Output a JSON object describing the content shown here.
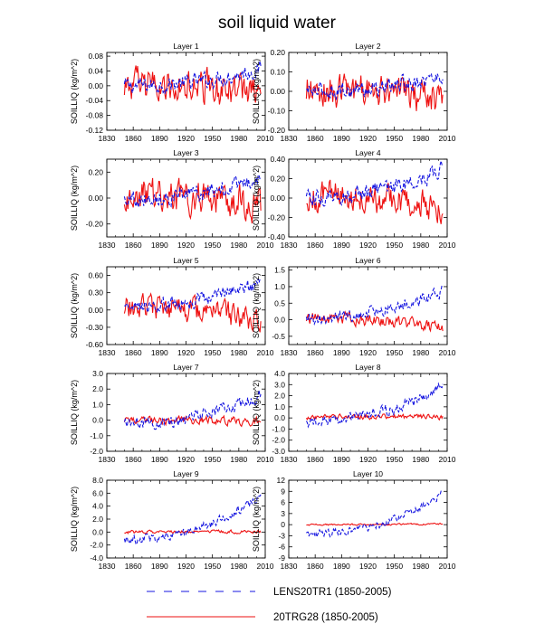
{
  "chart_data": {
    "title": "soil liquid water",
    "type": "line",
    "legend": {
      "position": "bottom-center",
      "entries": [
        {
          "label": "LENS20TR1 (1850-2005)",
          "color": "#1515e0",
          "style": "dashed"
        },
        {
          "label": "20TRG28 (1850-2005)",
          "color": "#ee1111",
          "style": "solid"
        }
      ]
    },
    "panels": [
      {
        "title": "Layer 1",
        "ylabel": "SOILLIQ  (kg/m^2)",
        "xlim": [
          1830,
          2010
        ],
        "xticks": [
          1830,
          1860,
          1890,
          1920,
          1950,
          1980,
          2010
        ],
        "ylim": [
          -0.12,
          0.09
        ],
        "yticks": [
          -0.12,
          -0.08,
          -0.04,
          0.0,
          0.04,
          0.08
        ],
        "ytick_labels": [
          "-0.12",
          "-0.08",
          "-0.04",
          "0.00",
          "0.04",
          "0.08"
        ],
        "red": {
          "amp": 0.038,
          "trend_start": 0.0,
          "trend_end": -0.015
        },
        "blue": {
          "amp": 0.018,
          "trend_start": 0.0,
          "trend_end": 0.045
        }
      },
      {
        "title": "Layer 2",
        "ylabel": "SOILLIQ  (kg/m^2)",
        "xlim": [
          1830,
          2010
        ],
        "xticks": [
          1830,
          1860,
          1890,
          1920,
          1950,
          1980,
          2010
        ],
        "ylim": [
          -0.2,
          0.2
        ],
        "yticks": [
          -0.2,
          -0.1,
          0.0,
          0.1,
          0.2
        ],
        "ytick_labels": [
          "-0.20",
          "-0.10",
          "0.00",
          "0.10",
          "0.20"
        ],
        "red": {
          "amp": 0.075,
          "trend_start": 0.01,
          "trend_end": -0.04
        },
        "blue": {
          "amp": 0.035,
          "trend_start": 0.0,
          "trend_end": 0.08
        }
      },
      {
        "title": "Layer 3",
        "ylabel": "SOILLIQ  (kg/m^2)",
        "xlim": [
          1830,
          2010
        ],
        "xticks": [
          1830,
          1860,
          1890,
          1920,
          1950,
          1980,
          2010
        ],
        "ylim": [
          -0.3,
          0.3
        ],
        "yticks": [
          -0.2,
          0.0,
          0.2
        ],
        "ytick_labels": [
          "-0.20",
          "0.00",
          "0.20"
        ],
        "red": {
          "amp": 0.11,
          "trend_start": 0.02,
          "trend_end": -0.06
        },
        "blue": {
          "amp": 0.05,
          "trend_start": 0.0,
          "trend_end": 0.15
        }
      },
      {
        "title": "Layer 4",
        "ylabel": "SOILLIQ  (kg/m^2)",
        "xlim": [
          1830,
          2010
        ],
        "xticks": [
          1830,
          1860,
          1890,
          1920,
          1950,
          1980,
          2010
        ],
        "ylim": [
          -0.4,
          0.4
        ],
        "yticks": [
          -0.4,
          -0.2,
          0.0,
          0.2,
          0.4
        ],
        "ytick_labels": [
          "-0.40",
          "-0.20",
          "0.00",
          "0.20",
          "0.40"
        ],
        "red": {
          "amp": 0.13,
          "trend_start": 0.02,
          "trend_end": -0.1
        },
        "blue": {
          "amp": 0.07,
          "trend_start": 0.0,
          "trend_end": 0.3
        }
      },
      {
        "title": "Layer 5",
        "ylabel": "SOILLIQ  (kg/m^2)",
        "xlim": [
          1830,
          2010
        ],
        "xticks": [
          1830,
          1860,
          1890,
          1920,
          1950,
          1980,
          2010
        ],
        "ylim": [
          -0.6,
          0.75
        ],
        "yticks": [
          -0.6,
          -0.3,
          0.0,
          0.3,
          0.6
        ],
        "ytick_labels": [
          "-0.60",
          "-0.30",
          "0.00",
          "0.30",
          "0.60"
        ],
        "red": {
          "amp": 0.18,
          "trend_start": 0.05,
          "trend_end": -0.2
        },
        "blue": {
          "amp": 0.1,
          "trend_start": 0.05,
          "trend_end": 0.5
        }
      },
      {
        "title": "Layer 6",
        "ylabel": "SOILLIQ  (kg/m^2)",
        "xlim": [
          1830,
          2010
        ],
        "xticks": [
          1830,
          1860,
          1890,
          1920,
          1950,
          1980,
          2010
        ],
        "ylim": [
          -0.75,
          1.6
        ],
        "yticks": [
          -0.5,
          0.0,
          0.5,
          1.0,
          1.5
        ],
        "ytick_labels": [
          "-0.5",
          "0.0",
          "0.5",
          "1.0",
          "1.5"
        ],
        "red": {
          "amp": 0.15,
          "trend_start": 0.05,
          "trend_end": -0.25
        },
        "blue": {
          "amp": 0.15,
          "trend_start": 0.05,
          "trend_end": 0.9
        }
      },
      {
        "title": "Layer 7",
        "ylabel": "SOILLIQ  (kg/m^2)",
        "xlim": [
          1830,
          2010
        ],
        "xticks": [
          1830,
          1860,
          1890,
          1920,
          1950,
          1980,
          2010
        ],
        "ylim": [
          -2.0,
          3.0
        ],
        "yticks": [
          -2.0,
          -1.0,
          0.0,
          1.0,
          2.0,
          3.0
        ],
        "ytick_labels": [
          "-2.0",
          "-1.0",
          "0.0",
          "1.0",
          "2.0",
          "3.0"
        ],
        "red": {
          "amp": 0.22,
          "trend_start": 0.0,
          "trend_end": -0.1
        },
        "blue": {
          "amp": 0.35,
          "trend_start": -0.2,
          "trend_end": 1.6
        }
      },
      {
        "title": "Layer 8",
        "ylabel": "SOILLIQ  (kg/m^2)",
        "xlim": [
          1830,
          2010
        ],
        "xticks": [
          1830,
          1860,
          1890,
          1920,
          1950,
          1980,
          2010
        ],
        "ylim": [
          -3.0,
          4.0
        ],
        "yticks": [
          -3.0,
          -2.0,
          -1.0,
          0.0,
          1.0,
          2.0,
          3.0,
          4.0
        ],
        "ytick_labels": [
          "-3.0",
          "-2.0",
          "-1.0",
          "0.0",
          "1.0",
          "2.0",
          "3.0",
          "4.0"
        ],
        "red": {
          "amp": 0.2,
          "trend_start": 0.1,
          "trend_end": 0.1
        },
        "blue": {
          "amp": 0.45,
          "trend_start": -0.4,
          "trend_end": 3.0
        }
      },
      {
        "title": "Layer 9",
        "ylabel": "SOILLIQ  (kg/m^2)",
        "xlim": [
          1830,
          2010
        ],
        "xticks": [
          1830,
          1860,
          1890,
          1920,
          1950,
          1980,
          2010
        ],
        "ylim": [
          -4.0,
          8.0
        ],
        "yticks": [
          -4.0,
          -2.0,
          0.0,
          2.0,
          4.0,
          6.0,
          8.0
        ],
        "ytick_labels": [
          "-4.0",
          "-2.0",
          "0.0",
          "2.0",
          "4.0",
          "6.0",
          "8.0"
        ],
        "red": {
          "amp": 0.22,
          "trend_start": 0.0,
          "trend_end": 0.1
        },
        "blue": {
          "amp": 0.6,
          "trend_start": -1.2,
          "trend_end": 5.5
        }
      },
      {
        "title": "Layer 10",
        "ylabel": "SOILLIQ  (kg/m^2)",
        "xlim": [
          1830,
          2010
        ],
        "xticks": [
          1830,
          1860,
          1890,
          1920,
          1950,
          1980,
          2010
        ],
        "ylim": [
          -9.0,
          12.0
        ],
        "yticks": [
          -9,
          -6,
          -3,
          0,
          3,
          6,
          9,
          12
        ],
        "ytick_labels": [
          "-9",
          "-6",
          "-3",
          "0",
          "3",
          "6",
          "9",
          "12"
        ],
        "red": {
          "amp": 0.2,
          "trend_start": 0.0,
          "trend_end": 0.2
        },
        "blue": {
          "amp": 0.9,
          "trend_start": -2.5,
          "trend_end": 8.5
        }
      }
    ],
    "series_years": [
      1850,
      2005
    ]
  }
}
